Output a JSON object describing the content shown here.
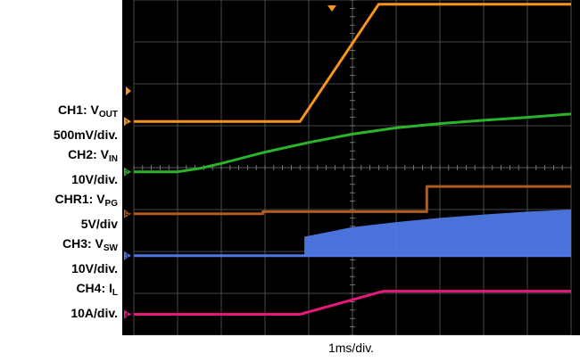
{
  "chart_data": {
    "type": "line",
    "xlabel": "1ms/div.",
    "x_range": [
      0,
      10
    ],
    "grid": true,
    "legend_position": "left",
    "background": "#000000",
    "grid_color": "#5a5a5a",
    "series": [
      {
        "name": "CH1",
        "color": "#f7941d",
        "ground_marker": "1",
        "x": [
          0,
          3.8,
          5.6,
          10
        ],
        "y": [
          1.1,
          1.1,
          3.9,
          3.9
        ]
      },
      {
        "name": "CH2",
        "color": "#2cb32c",
        "ground_marker": "2",
        "x": [
          0,
          1.0,
          1.5,
          2.0,
          3.0,
          4.0,
          5.0,
          6.0,
          7.0,
          8.0,
          9.0,
          10.0
        ],
        "y": [
          -0.1,
          -0.1,
          -0.02,
          0.1,
          0.37,
          0.6,
          0.8,
          0.95,
          1.05,
          1.13,
          1.2,
          1.28
        ]
      },
      {
        "name": "CHR1",
        "color": "#b35a1a",
        "ground_marker": "R",
        "x": [
          0,
          2.95,
          2.95,
          6.7,
          6.7,
          10
        ],
        "y": [
          -1.1,
          -1.1,
          -1.05,
          -1.05,
          -0.45,
          -0.45
        ]
      },
      {
        "name": "CH3",
        "color": "#4f78e6",
        "ground_marker": "3",
        "x": [
          0,
          3.9,
          3.9,
          10
        ],
        "y": [
          -2.1,
          -2.1,
          -2.1,
          -2.1
        ],
        "envelope_upper": [
          [
            3.9,
            -1.65
          ],
          [
            5,
            -1.42
          ],
          [
            6,
            -1.3
          ],
          [
            7,
            -1.2
          ],
          [
            8,
            -1.12
          ],
          [
            9,
            -1.05
          ],
          [
            10,
            -1.0
          ]
        ]
      },
      {
        "name": "CH4",
        "color": "#e6197a",
        "ground_marker": "4",
        "x": [
          0,
          3.8,
          5.7,
          10
        ],
        "y": [
          -3.5,
          -3.5,
          -2.95,
          -2.95
        ]
      }
    ]
  },
  "legend": [
    {
      "label": "CH1: V",
      "sub": "OUT"
    },
    {
      "label": "500mV/div."
    },
    {
      "label": "CH2: V",
      "sub": "IN"
    },
    {
      "label": "10V/div."
    },
    {
      "label": "CHR1: V",
      "sub": "PG"
    },
    {
      "label": "5V/div"
    },
    {
      "label": "CH3: V",
      "sub": "SW"
    },
    {
      "label": "10V/div."
    },
    {
      "label": "CH4: I",
      "sub": "L"
    },
    {
      "label": "10A/div."
    }
  ]
}
